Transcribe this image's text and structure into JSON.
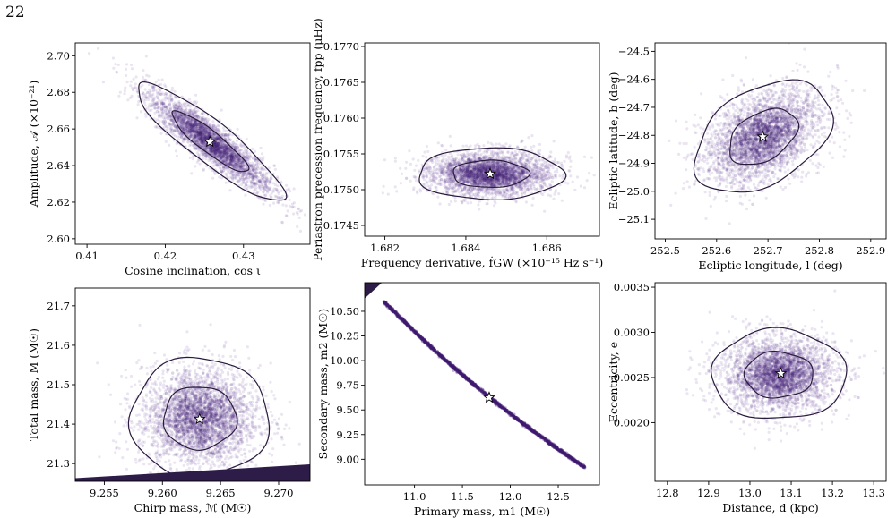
{
  "page_number": "22",
  "chart_data": [
    {
      "id": "p1",
      "type": "scatter",
      "xlabel": "Cosine inclination, cos ι",
      "ylabel": "Amplitude, 𝒜 (×10⁻²¹)",
      "xlim": [
        0.4085,
        0.4385
      ],
      "ylim": [
        2.597,
        2.707
      ],
      "xticks": [
        0.41,
        0.42,
        0.43
      ],
      "xtick_labels": [
        "0.41",
        "0.42",
        "0.43"
      ],
      "yticks": [
        2.6,
        2.62,
        2.64,
        2.66,
        2.68,
        2.7
      ],
      "ytick_labels": [
        "2.60",
        "2.62",
        "2.64",
        "2.66",
        "2.68",
        "2.70"
      ],
      "truth": [
        0.4257,
        2.653
      ],
      "cloud": {
        "cx": 0.4257,
        "cy": 2.653,
        "sx": 0.0041,
        "sy": 0.014,
        "rho": -0.9
      },
      "contours": [
        1.03,
        2.0
      ],
      "grid": false
    },
    {
      "id": "p2",
      "type": "scatter",
      "xlabel": "Frequency derivative, ḟGW (×10⁻¹⁵ Hz s⁻¹)",
      "ylabel": "Periastron precession frequency, fpp (μHz)",
      "xlim": [
        1.6815,
        1.6873
      ],
      "ylim": [
        0.17435,
        0.17705
      ],
      "xticks": [
        1.682,
        1.684,
        1.686
      ],
      "xtick_labels": [
        "1.682",
        "1.684",
        "1.686"
      ],
      "yticks": [
        0.1745,
        0.175,
        0.1755,
        0.176,
        0.1765,
        0.177
      ],
      "ytick_labels": [
        "0.1745",
        "0.1750",
        "0.1755",
        "0.1760",
        "0.1765",
        "0.1770"
      ],
      "truth": [
        1.6846,
        0.17522
      ],
      "cloud": {
        "cx": 1.6846,
        "cy": 0.17522,
        "sx": 0.00078,
        "sy": 0.000157,
        "rho": 0.0
      },
      "contours": [
        1.05,
        2.0
      ],
      "grid": false
    },
    {
      "id": "p3",
      "type": "scatter",
      "xlabel": "Ecliptic longitude, l (deg)",
      "ylabel": "Ecliptic latitude, b (deg)",
      "xlim": [
        252.48,
        252.93
      ],
      "ylim": [
        -25.17,
        -24.47
      ],
      "xticks": [
        252.5,
        252.6,
        252.7,
        252.8,
        252.9
      ],
      "xtick_labels": [
        "252.5",
        "252.6",
        "252.7",
        "252.8",
        "252.9"
      ],
      "yticks": [
        -25.1,
        -25.0,
        -24.9,
        -24.8,
        -24.7,
        -24.6,
        -24.5
      ],
      "ytick_labels": [
        "−25.1",
        "−25.0",
        "−24.9",
        "−24.8",
        "−24.7",
        "−24.6",
        "−24.5"
      ],
      "truth": [
        252.69,
        -24.805
      ],
      "cloud": {
        "cx": 252.69,
        "cy": -24.805,
        "sx": 0.058,
        "sy": 0.087,
        "rho": 0.4
      },
      "contours": [
        1.0,
        2.0
      ],
      "grid": false
    },
    {
      "id": "p4",
      "type": "scatter",
      "xlabel": "Chirp mass, ℳ (M☉)",
      "ylabel": "Total mass, M (M☉)",
      "xlim": [
        9.2525,
        9.2727
      ],
      "ylim": [
        21.255,
        21.745
      ],
      "xticks": [
        9.255,
        9.26,
        9.265,
        9.27
      ],
      "xtick_labels": [
        "9.255",
        "9.260",
        "9.265",
        "9.270"
      ],
      "yticks": [
        21.3,
        21.4,
        21.5,
        21.6,
        21.7
      ],
      "ytick_labels": [
        "21.3",
        "21.4",
        "21.5",
        "21.6",
        "21.7"
      ],
      "truth": [
        9.2632,
        21.413
      ],
      "cloud": {
        "cx": 9.2632,
        "cy": 21.416,
        "sx": 0.0026,
        "sy": 0.066,
        "rho": 0.0
      },
      "contours": [
        1.05,
        2.0
      ],
      "excluded_region": [
        [
          9.2525,
          21.255
        ],
        [
          9.2727,
          21.255
        ],
        [
          9.2727,
          21.298
        ],
        [
          9.2525,
          21.263
        ]
      ],
      "grid": false
    },
    {
      "id": "p5",
      "type": "scatter",
      "xlabel": "Primary mass, m1 (M☉)",
      "ylabel": "Secondary mass, m2 (M☉)",
      "xlim": [
        10.48,
        12.93
      ],
      "ylim": [
        8.74,
        10.79
      ],
      "xticks": [
        11.0,
        11.5,
        12.0,
        12.5
      ],
      "xtick_labels": [
        "11.0",
        "11.5",
        "12.0",
        "12.5"
      ],
      "yticks": [
        9.0,
        9.25,
        9.5,
        9.75,
        10.0,
        10.25,
        10.5
      ],
      "ytick_labels": [
        "9.00",
        "9.25",
        "9.50",
        "9.75",
        "10.00",
        "10.25",
        "10.50"
      ],
      "truth": [
        11.78,
        9.625
      ],
      "band": {
        "x_start": 10.68,
        "x_end": 12.78,
        "chirp_mass": 9.2632
      },
      "excluded_region": [
        [
          10.48,
          10.79
        ],
        [
          10.48,
          10.63
        ],
        [
          10.66,
          10.79
        ]
      ],
      "grid": false
    },
    {
      "id": "p6",
      "type": "scatter",
      "xlabel": "Distance, d (kpc)",
      "ylabel": "Eccentricity, e",
      "xlim": [
        12.77,
        13.33
      ],
      "ylim": [
        0.00135,
        0.00355
      ],
      "xticks": [
        12.8,
        12.9,
        13.0,
        13.1,
        13.2,
        13.3
      ],
      "xtick_labels": [
        "12.8",
        "12.9",
        "13.0",
        "13.1",
        "13.2",
        "13.3"
      ],
      "yticks": [
        0.002,
        0.0025,
        0.003,
        0.0035
      ],
      "ytick_labels": [
        "0.0020",
        "0.0025",
        "0.0030",
        "0.0035"
      ],
      "truth": [
        13.075,
        0.002545
      ],
      "cloud": {
        "cx": 13.07,
        "cy": 0.00253,
        "sx": 0.071,
        "sy": 0.000217,
        "rho": 0.0
      },
      "contours": [
        1.02,
        2.0
      ],
      "grid": false
    }
  ],
  "colors": {
    "points": "#7b5ba6",
    "density_dark": "#3f1a70",
    "contour": "#2a1a3d",
    "excluded": "#2d1b48",
    "truth_fill": "#ffffff",
    "truth_stroke": "#000000"
  }
}
